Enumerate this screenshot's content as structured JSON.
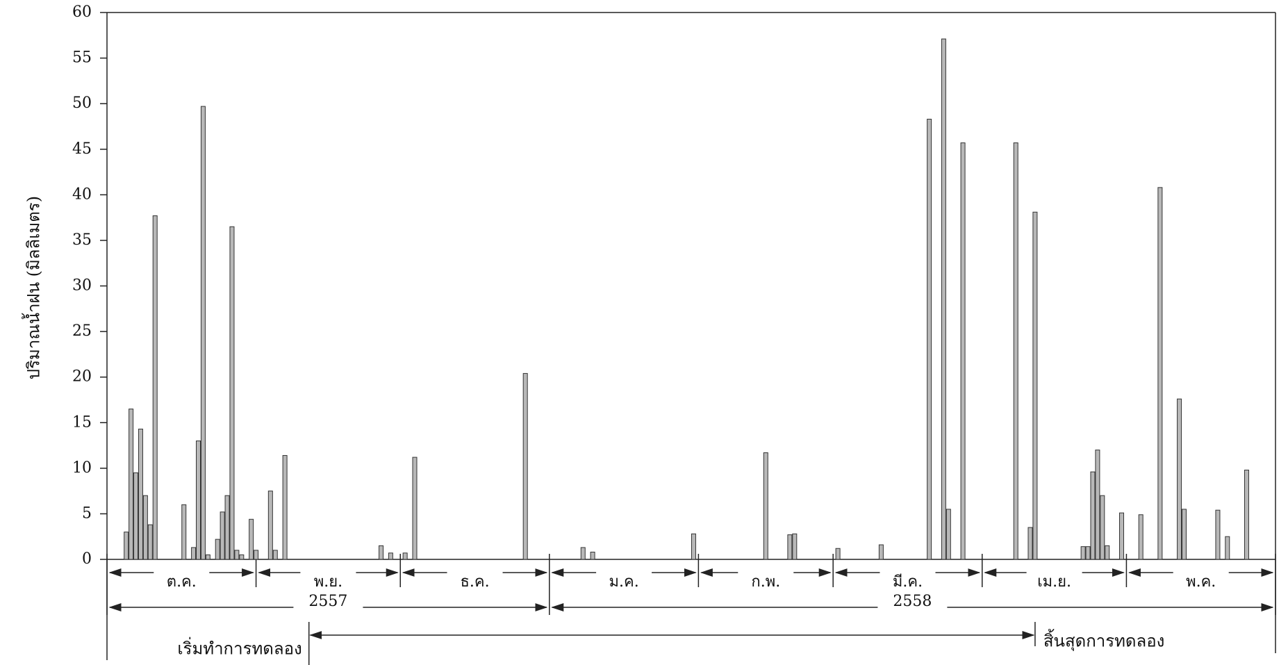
{
  "chart_data": {
    "type": "bar",
    "y_label": "ปริมาณน้ำฝน (มิลลิเมตร)",
    "x": [
      4,
      5,
      6,
      7,
      8,
      9,
      10,
      16,
      18,
      19,
      20,
      21,
      23,
      24,
      25,
      26,
      27,
      28,
      30,
      31,
      34,
      35,
      37,
      57,
      59,
      62,
      64,
      87,
      99,
      101,
      122,
      137,
      142,
      143,
      152,
      161,
      171,
      174,
      175,
      178,
      189,
      192,
      193,
      203,
      204,
      205,
      206,
      207,
      208,
      211,
      215,
      219,
      223,
      224,
      231,
      233,
      237
    ],
    "values": [
      3,
      16.5,
      9.5,
      14.3,
      7,
      3.8,
      37.7,
      6,
      1.3,
      13,
      49.7,
      0.5,
      2.2,
      5.2,
      7,
      36.5,
      1,
      0.5,
      4.4,
      1,
      7.5,
      1,
      11.4,
      1.5,
      0.7,
      0.7,
      11.2,
      20.4,
      1.3,
      0.8,
      2.8,
      11.7,
      2.7,
      2.8,
      1.2,
      1.6,
      48.3,
      57.1,
      5.5,
      45.7,
      45.7,
      3.5,
      38.1,
      1.4,
      1.4,
      9.6,
      12,
      7,
      1.5,
      5.1,
      4.9,
      40.8,
      17.6,
      5.5,
      5.4,
      2.5,
      9.8
    ],
    "color": "#b8b8b8",
    "xlim": [
      0,
      243
    ],
    "ylim": [
      0,
      60
    ],
    "yticks": [
      0,
      5,
      10,
      15,
      20,
      25,
      30,
      35,
      40,
      45,
      50,
      55,
      60
    ],
    "months": [
      "ต.ค.",
      "พ.ย.",
      "ธ.ค.",
      "ม.ค.",
      "ก.พ.",
      "มี.ค.",
      "เม.ย.",
      "พ.ค."
    ],
    "month_bounds": [
      0,
      31,
      61,
      92,
      123,
      151,
      182,
      212,
      243
    ],
    "years": [
      "2557",
      "2558"
    ],
    "year_bounds": [
      0,
      92,
      243
    ],
    "experiment_span": [
      42,
      193
    ],
    "annotations": {
      "start": "เริ่มทำการทดลอง",
      "end": "สิ้นสุดการทดลอง"
    }
  }
}
